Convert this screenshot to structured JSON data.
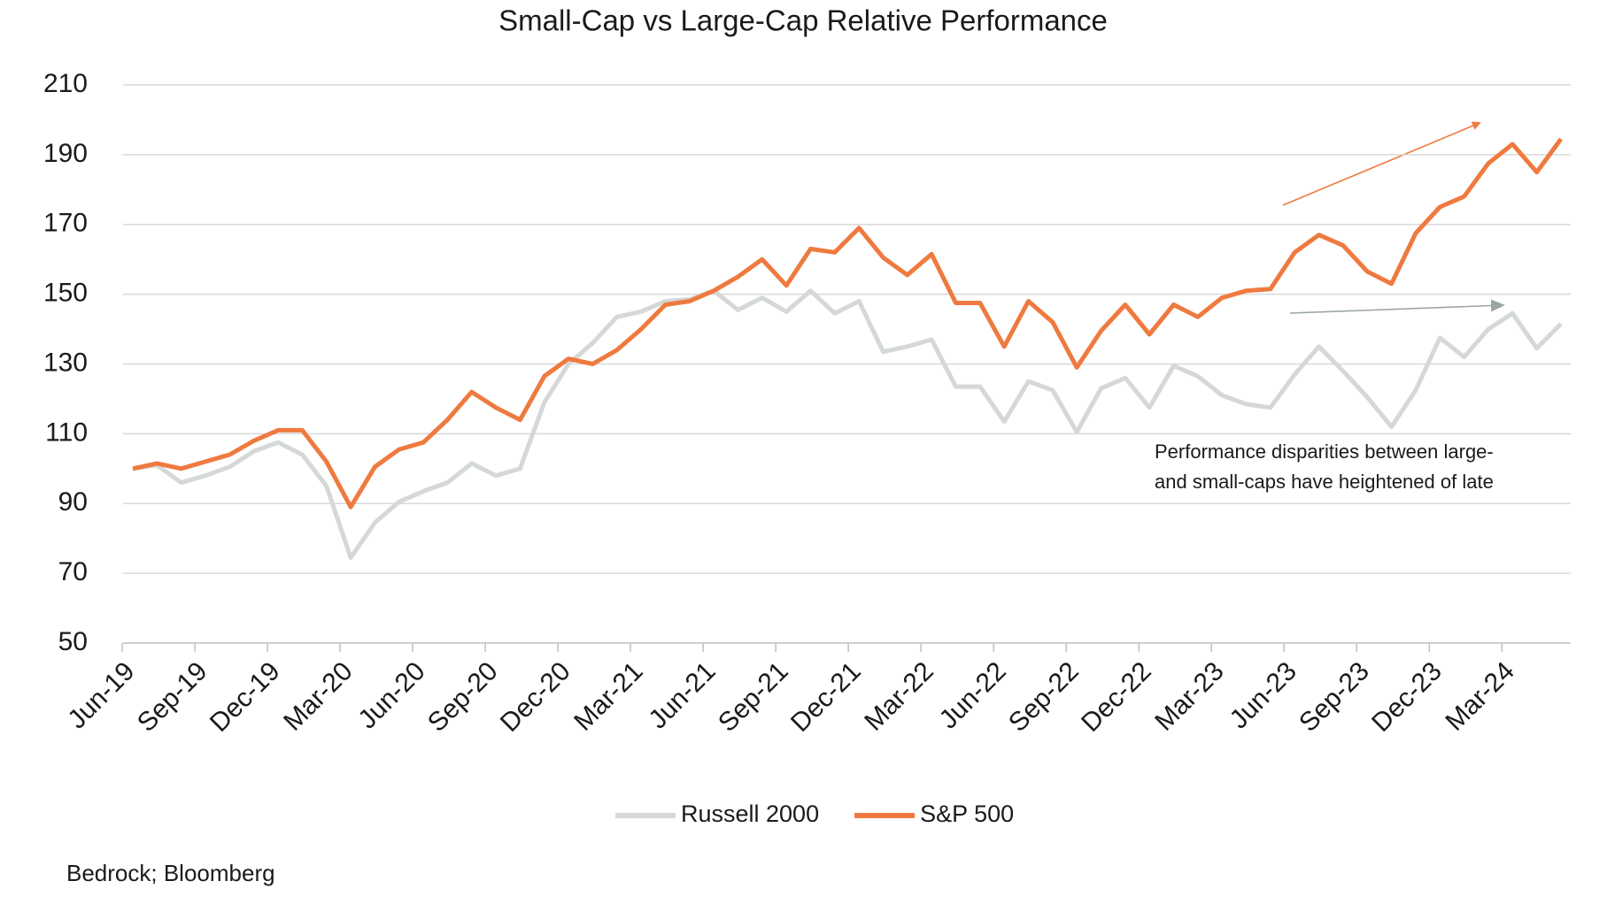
{
  "chart_data": {
    "type": "line",
    "title": "Small-Cap vs Large-Cap Relative Performance",
    "categories": [
      "Jun-19",
      null,
      null,
      "Sep-19",
      null,
      null,
      "Dec-19",
      null,
      null,
      "Mar-20",
      null,
      null,
      "Jun-20",
      null,
      null,
      "Sep-20",
      null,
      null,
      "Dec-20",
      null,
      null,
      "Mar-21",
      null,
      null,
      "Jun-21",
      null,
      null,
      "Sep-21",
      null,
      null,
      "Dec-21",
      null,
      null,
      "Mar-22",
      null,
      null,
      "Jun-22",
      null,
      null,
      "Sep-22",
      null,
      null,
      "Dec-22",
      null,
      null,
      "Mar-23",
      null,
      null,
      "Jun-23",
      null,
      null,
      "Sep-23",
      null,
      null,
      "Dec-23",
      null,
      null,
      "Mar-24",
      null,
      null
    ],
    "series": [
      {
        "name": "Russell 2000",
        "color": "#d4d8d6",
        "values": [
          100,
          101,
          96,
          98,
          100.5,
          105,
          107.5,
          104,
          95,
          74.5,
          84.5,
          90.5,
          93.5,
          96,
          101.5,
          98,
          100,
          119,
          130,
          136,
          143.5,
          145,
          148,
          148.5,
          151,
          145.5,
          149,
          145,
          151,
          144.5,
          148,
          133.5,
          135,
          137,
          123.5,
          123.5,
          113.5,
          125,
          122.5,
          110.5,
          123,
          126,
          117.5,
          129.5,
          126.5,
          121,
          118.5,
          117.5,
          127,
          135,
          128,
          120.5,
          112,
          122.5,
          137.5,
          132,
          140,
          144.5,
          134.5,
          141.5
        ]
      },
      {
        "name": "S&P 500",
        "color": "#ef7a3f",
        "values": [
          100,
          101.5,
          100,
          102,
          104,
          108,
          111,
          111,
          102,
          89,
          100.5,
          105.5,
          107.5,
          114,
          122,
          117.5,
          114,
          126.5,
          131.5,
          130,
          134,
          140,
          147,
          148,
          151,
          155,
          160,
          152.5,
          163,
          162,
          169,
          160.5,
          155.5,
          161.5,
          147.5,
          147.5,
          135,
          148,
          142,
          129,
          139.5,
          147,
          138.5,
          147,
          143.5,
          149,
          151,
          151.5,
          162,
          167,
          164,
          156.5,
          153,
          167.5,
          175,
          178,
          187.5,
          193,
          185,
          194.5
        ]
      }
    ],
    "ylim": [
      50,
      210
    ],
    "yticks": [
      50,
      70,
      90,
      110,
      130,
      150,
      170,
      190,
      210
    ],
    "grid": true,
    "annotation": [
      "Performance disparities between large-",
      "and small-caps have heightened of late"
    ],
    "source": "Bedrock; Bloomberg",
    "legend": "bottom"
  }
}
